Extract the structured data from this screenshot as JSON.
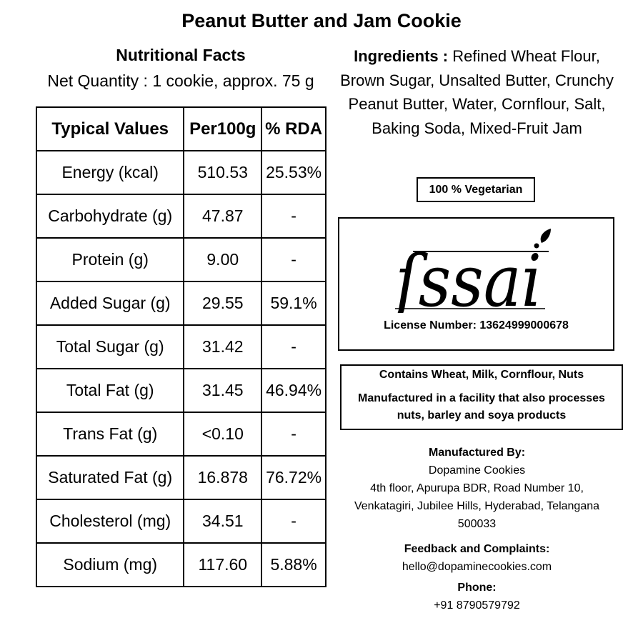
{
  "title": "Peanut Butter and Jam Cookie",
  "nutrition": {
    "heading": "Nutritional Facts",
    "net_quantity": "Net Quantity : 1 cookie, approx. 75 g",
    "columns": [
      "Typical Values",
      "Per100g",
      "% RDA"
    ],
    "rows": [
      [
        "Energy (kcal)",
        "510.53",
        "25.53%"
      ],
      [
        "Carbohydrate (g)",
        "47.87",
        "-"
      ],
      [
        "Protein (g)",
        "9.00",
        "-"
      ],
      [
        "Added Sugar (g)",
        "29.55",
        "59.1%"
      ],
      [
        "Total Sugar (g)",
        "31.42",
        "-"
      ],
      [
        "Total Fat (g)",
        "31.45",
        "46.94%"
      ],
      [
        "Trans Fat (g)",
        "<0.10",
        "-"
      ],
      [
        "Saturated Fat (g)",
        "16.878",
        "76.72%"
      ],
      [
        "Cholesterol (mg)",
        "34.51",
        "-"
      ],
      [
        "Sodium (mg)",
        "117.60",
        "5.88%"
      ]
    ]
  },
  "ingredients": {
    "label": "Ingredients : ",
    "text": "Refined Wheat Flour, Brown Sugar, Unsalted Butter, Crunchy Peanut Butter, Water, Cornflour, Salt, Baking Soda, Mixed-Fruit Jam"
  },
  "vegetarian": "100 % Vegetarian",
  "fssai": {
    "logo_text": "fssai",
    "license": "License Number: 13624999000678"
  },
  "allergen": {
    "contains": "Contains Wheat, Milk, Cornflour, Nuts",
    "facility": "Manufactured in a facility that also processes nuts, barley and soya products"
  },
  "manufacturer": {
    "heading": "Manufactured By:",
    "name": "Dopamine Cookies",
    "address1": "4th floor, Apurupa BDR, Road Number 10,",
    "address2": "Venkatagiri, Jubilee Hills, Hyderabad, Telangana",
    "pincode": "500033",
    "feedback_heading": "Feedback and Complaints:",
    "email": "hello@dopaminecookies.com",
    "phone_heading": "Phone:",
    "phone": "+91 8790579792"
  }
}
